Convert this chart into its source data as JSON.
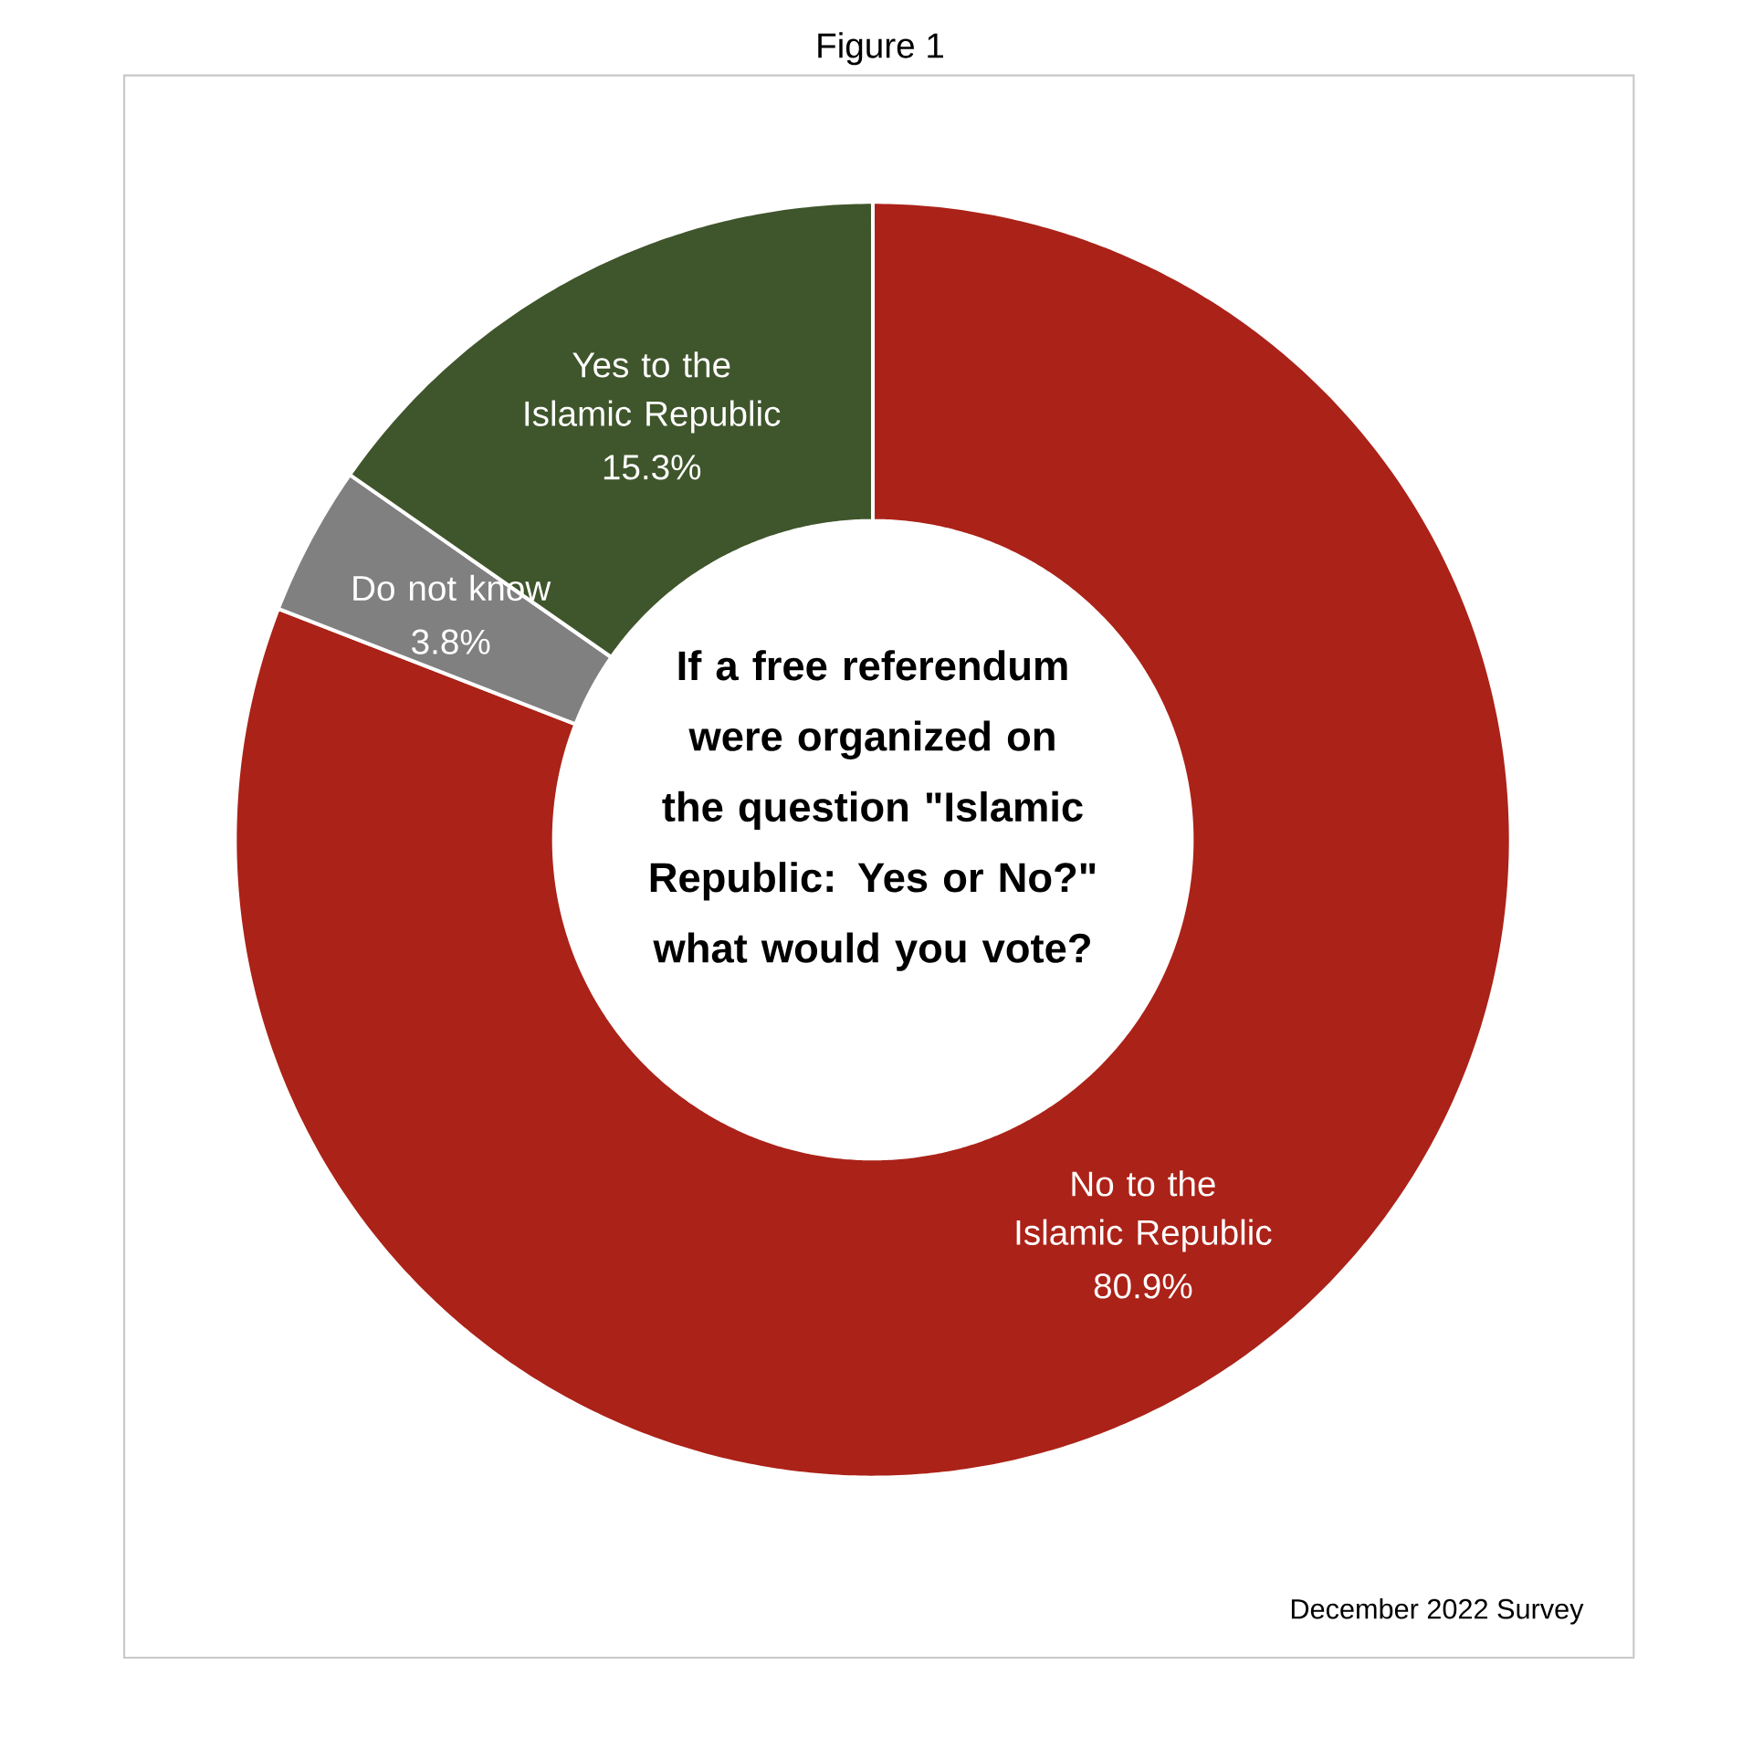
{
  "chart_data": {
    "type": "donut",
    "title": "Figure 1",
    "categories": [
      "No to the Islamic Republic",
      "Do not know",
      "Yes to the Islamic Republic"
    ],
    "values": [
      80.9,
      3.8,
      15.3
    ],
    "colors": [
      "#ab2218",
      "#808080",
      "#3f552b"
    ],
    "value_labels": [
      "80.9%",
      "3.8%",
      "15.3%"
    ],
    "annotations": [
      "If a free referendum were organized on the question \"Islamic Republic: Yes or No?\" what would you vote?",
      "December 2022 Survey"
    ]
  }
}
